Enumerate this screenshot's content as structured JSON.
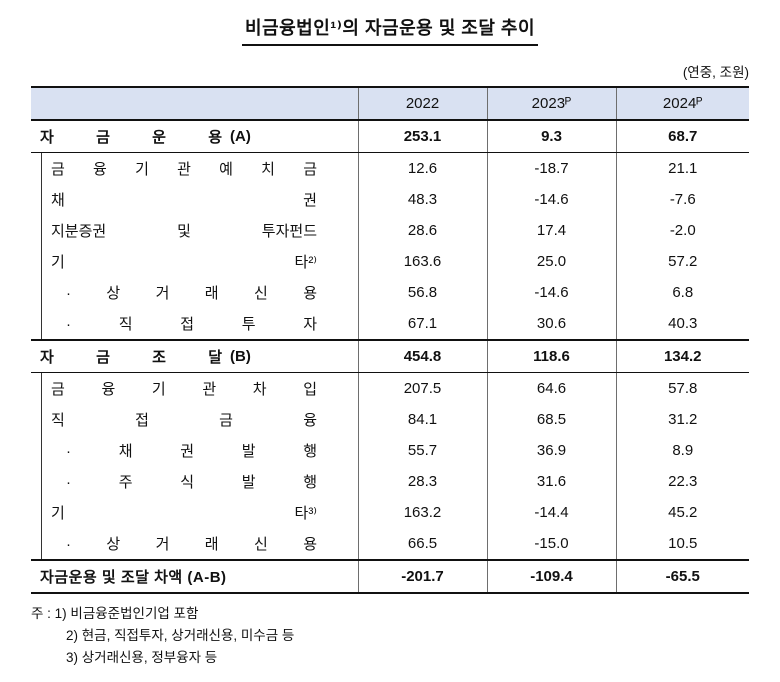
{
  "title": "비금융법인¹⁾의 자금운용 및 조달 추이",
  "unit_note": "(연중, 조원)",
  "table": {
    "columns": [
      "2022",
      "2023ᴾ",
      "2024ᴾ"
    ],
    "rows": [
      {
        "label": "자 금 운 용",
        "suffix": "(A)",
        "values": [
          "253.1",
          "9.3",
          "68.7"
        ]
      },
      {
        "label": "금 융 기 관 예 치 금",
        "values": [
          "12.6",
          "-18.7",
          "21.1"
        ]
      },
      {
        "label": "채 권",
        "values": [
          "48.3",
          "-14.6",
          "-7.6"
        ]
      },
      {
        "label": "지분증권 및 투자펀드",
        "values": [
          "28.6",
          "17.4",
          "-2.0"
        ]
      },
      {
        "label": "기 타²⁾",
        "values": [
          "163.6",
          "25.0",
          "57.2"
        ]
      },
      {
        "label": "· 상 거 래 신 용",
        "values": [
          "56.8",
          "-14.6",
          "6.8"
        ]
      },
      {
        "label": "· 직 접 투 자",
        "values": [
          "67.1",
          "30.6",
          "40.3"
        ]
      },
      {
        "label": "자 금 조 달",
        "suffix": "(B)",
        "values": [
          "454.8",
          "118.6",
          "134.2"
        ]
      },
      {
        "label": "금 융 기 관 차 입",
        "values": [
          "207.5",
          "64.6",
          "57.8"
        ]
      },
      {
        "label": "직 접 금 융",
        "values": [
          "84.1",
          "68.5",
          "31.2"
        ]
      },
      {
        "label": "· 채 권 발 행",
        "values": [
          "55.7",
          "36.9",
          "8.9"
        ]
      },
      {
        "label": "· 주 식 발 행",
        "values": [
          "28.3",
          "31.6",
          "22.3"
        ]
      },
      {
        "label": "기 타³⁾",
        "values": [
          "163.2",
          "-14.4",
          "45.2"
        ]
      },
      {
        "label": "· 상 거 래 신 용",
        "values": [
          "66.5",
          "-15.0",
          "10.5"
        ]
      },
      {
        "label": "자금운용 및 조달 차액 (A-B)",
        "values": [
          "-201.7",
          "-109.4",
          "-65.5"
        ]
      }
    ]
  },
  "footnotes": [
    "주 : 1) 비금융준법인기업 포함",
    "2) 현금, 직접투자, 상거래신용, 미수금 등",
    "3) 상거래신용, 정부융자 등"
  ]
}
